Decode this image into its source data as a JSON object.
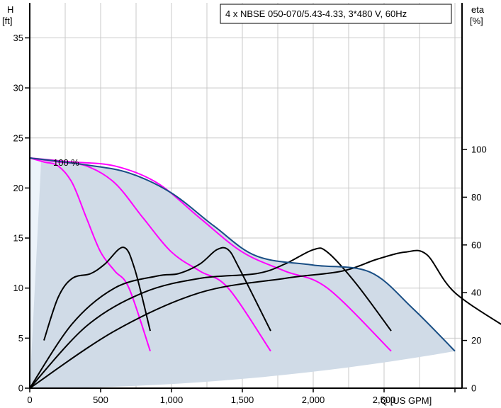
{
  "chart_data": {
    "type": "line",
    "title": "4 x NBSE 050-070/5.43-4.33, 3*480 V, 60Hz",
    "left_axis": {
      "label_line1": "H",
      "label_line2": "[ft]",
      "range": [
        0,
        38.5
      ],
      "ticks": [
        0,
        5,
        10,
        15,
        20,
        25,
        30,
        35
      ],
      "tick_labels": [
        "0",
        "5",
        "10",
        "15",
        "20",
        "25",
        "30",
        "35"
      ]
    },
    "right_axis": {
      "label_line1": "eta",
      "label_line2": "[%]",
      "range": [
        0,
        100
      ],
      "ticks": [
        0,
        20,
        40,
        60,
        80,
        100
      ],
      "tick_labels": [
        "0",
        "20",
        "40",
        "60",
        "80",
        "100"
      ]
    },
    "x_axis": {
      "label": "Q [US GPM]",
      "range": [
        0,
        3050
      ],
      "ticks": [
        0,
        500,
        1000,
        1500,
        2000,
        2500
      ],
      "tick_labels": [
        "0",
        "500",
        "1,000",
        "1,500",
        "2,000",
        "2,500"
      ]
    },
    "annotation": "100 %",
    "grid": true,
    "colors": {
      "envelope_fill": "#d0dbe7",
      "envelope_fill_light": "#ecf3fa",
      "hq_curve": "#1a4f85",
      "speed_curves": "#ff00ff",
      "efficiency_curves": "#000000",
      "grid": "#c8c8c8"
    },
    "series": [
      {
        "axis": "left",
        "points": [
          [
            0,
            23
          ],
          [
            400,
            22.3
          ],
          [
            700,
            21.5
          ],
          [
            1000,
            19.5
          ],
          [
            1300,
            16.2
          ],
          [
            1600,
            13.2
          ],
          [
            2000,
            12.3
          ],
          [
            2400,
            11.6
          ],
          [
            2700,
            8
          ],
          [
            3000,
            3.7
          ]
        ]
      },
      {
        "axis": "left",
        "points": [
          [
            0,
            23
          ],
          [
            100,
            22.6
          ],
          [
            200,
            22.2
          ],
          [
            300,
            20.5
          ],
          [
            400,
            17
          ],
          [
            500,
            13.6
          ],
          [
            600,
            11.7
          ],
          [
            700,
            10
          ],
          [
            850,
            3.7
          ]
        ]
      },
      {
        "axis": "left",
        "points": [
          [
            0,
            23
          ],
          [
            200,
            22.6
          ],
          [
            400,
            22.2
          ],
          [
            600,
            20.5
          ],
          [
            800,
            17
          ],
          [
            1000,
            13.6
          ],
          [
            1200,
            11.7
          ],
          [
            1400,
            10
          ],
          [
            1700,
            3.7
          ]
        ]
      },
      {
        "axis": "left",
        "points": [
          [
            0,
            23
          ],
          [
            300,
            22.6
          ],
          [
            600,
            22.2
          ],
          [
            900,
            20.5
          ],
          [
            1200,
            17
          ],
          [
            1500,
            13.6
          ],
          [
            1800,
            11.7
          ],
          [
            2100,
            10
          ],
          [
            2550,
            3.7
          ]
        ]
      },
      {
        "axis": "right",
        "points": [
          [
            100,
            20
          ],
          [
            200,
            38
          ],
          [
            300,
            46
          ],
          [
            430,
            48
          ],
          [
            530,
            52
          ],
          [
            660,
            59
          ],
          [
            740,
            50
          ],
          [
            850,
            24
          ]
        ]
      },
      {
        "axis": "right",
        "points": [
          [
            0,
            0
          ],
          [
            300,
            27
          ],
          [
            600,
            42
          ],
          [
            900,
            47
          ],
          [
            1050,
            48
          ],
          [
            1200,
            52
          ],
          [
            1320,
            58
          ],
          [
            1400,
            58
          ],
          [
            1480,
            50
          ],
          [
            1700,
            24
          ]
        ]
      },
      {
        "axis": "right",
        "points": [
          [
            0,
            0
          ],
          [
            400,
            26
          ],
          [
            800,
            40
          ],
          [
            1200,
            46
          ],
          [
            1600,
            48
          ],
          [
            1800,
            52
          ],
          [
            2000,
            58
          ],
          [
            2100,
            57
          ],
          [
            2300,
            44
          ],
          [
            2550,
            24
          ]
        ]
      },
      {
        "axis": "right",
        "points": [
          [
            0,
            0
          ],
          [
            600,
            24
          ],
          [
            1200,
            40
          ],
          [
            1800,
            46
          ],
          [
            2200,
            49
          ],
          [
            2450,
            54
          ],
          [
            2650,
            57
          ],
          [
            2800,
            56
          ],
          [
            3000,
            40
          ],
          [
            3400,
            24
          ]
        ]
      }
    ]
  }
}
